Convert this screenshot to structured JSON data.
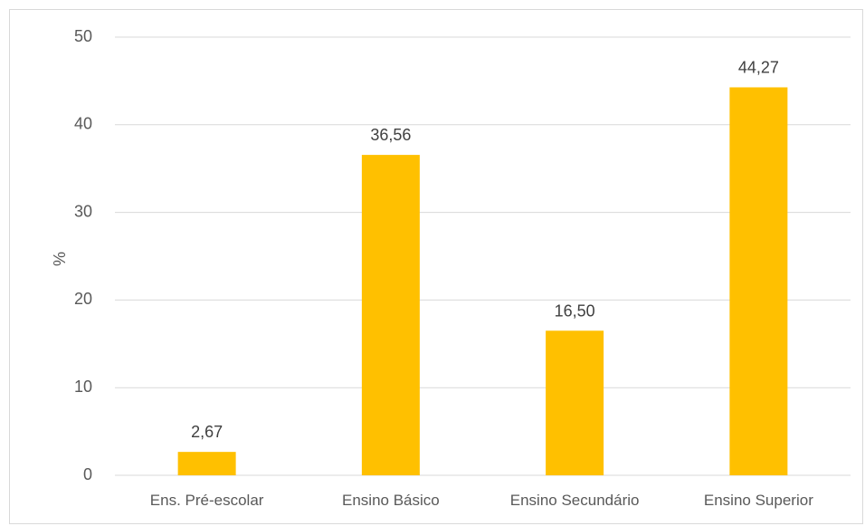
{
  "chart_data": {
    "type": "bar",
    "categories": [
      "Ens. Pré-escolar",
      "Ensino Básico",
      "Ensino Secundário",
      "Ensino Superior"
    ],
    "values": [
      2.67,
      36.56,
      16.5,
      44.27
    ],
    "data_labels": [
      "2,67",
      "36,56",
      "16,50",
      "44,27"
    ],
    "yticks": [
      "0",
      "10",
      "20",
      "30",
      "40",
      "50"
    ],
    "ylim": [
      0,
      50
    ],
    "xlabel": "",
    "ylabel": "%",
    "title": "",
    "grid": true,
    "bar_color": "#FFC000",
    "grid_color": "#d9d9d9",
    "legend": "none"
  }
}
